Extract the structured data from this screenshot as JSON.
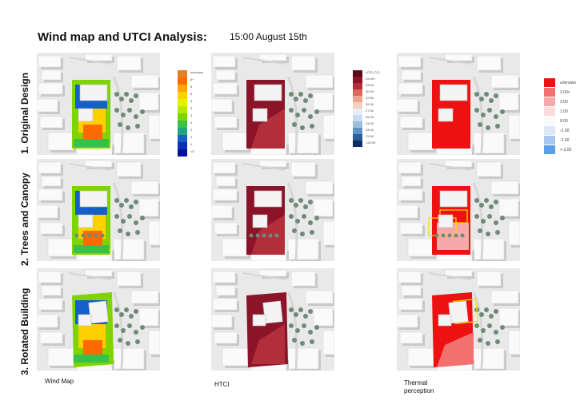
{
  "header": {
    "title": "Wind map and UTCI Analysis:",
    "subtitle": "15:00 August 15th"
  },
  "rows": [
    {
      "label": "1. Original Design"
    },
    {
      "label": "2. Trees and Canopy"
    },
    {
      "label": "3. Rotated Building"
    }
  ],
  "columns": [
    {
      "label": "Wind Map"
    },
    {
      "label": "HTCI"
    },
    {
      "label": "Thermal\nperception"
    }
  ],
  "legends": {
    "wind": {
      "colors": [
        "#e67e22",
        "#ff6a00",
        "#ffa500",
        "#ffd000",
        "#e6f000",
        "#b8e600",
        "#7fd400",
        "#36c24a",
        "#1ca77c",
        "#1560c8",
        "#0a2fb8",
        "#0010a0"
      ],
      "labels": [
        "unknown",
        "6+",
        "5",
        "5",
        "4",
        "3",
        "3",
        "2",
        "2",
        "1",
        "1",
        "<0"
      ]
    },
    "utci": {
      "colors": [
        "#5a0a1a",
        "#8b1428",
        "#b22e3a",
        "#d66a5e",
        "#eea58f",
        "#f5d0c0",
        "#e5eef6",
        "#c9dced",
        "#9bbedc",
        "#5f93c3",
        "#2c5f9a",
        "#0d2f5e"
      ],
      "labels": [
        "UTCI (°C)",
        "29.00+",
        "33.50",
        "30.00",
        "32.50",
        "29.00",
        "27.50",
        "26.00",
        "24.50",
        "23.00",
        "21.50",
        "<20.00"
      ]
    },
    "thermal": {
      "colors": [
        "#ee1111",
        "#f27070",
        "#f7a8a8",
        "#fbdcdc",
        "#fafafa",
        "#dde8f7",
        "#a9c8f0",
        "#5aa0e8",
        "#1a78e0"
      ],
      "labels": [
        "unknown",
        "3.00<",
        "2.00",
        "1.00",
        "0.00",
        "-1.00",
        "-2.00",
        "<-3.00",
        ""
      ]
    }
  }
}
